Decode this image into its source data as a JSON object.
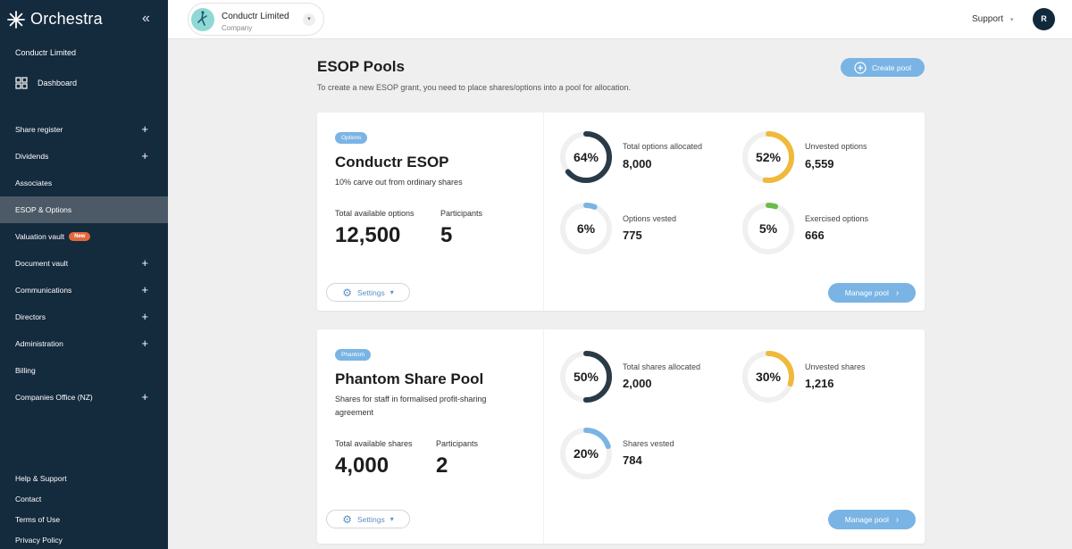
{
  "sidebar": {
    "brand": "Orchestra",
    "company": "Conductr Limited",
    "dashboard": "Dashboard",
    "items": [
      {
        "label": "Share register",
        "plus": "+"
      },
      {
        "label": "Dividends",
        "plus": "+"
      },
      {
        "label": "Associates",
        "plus": ""
      },
      {
        "label": "ESOP & Options",
        "plus": "",
        "active": true
      },
      {
        "label": "Valuation vault",
        "plus": "",
        "badge": "New"
      },
      {
        "label": "Document vault",
        "plus": "+"
      },
      {
        "label": "Communications",
        "plus": "+"
      },
      {
        "label": "Directors",
        "plus": "+"
      },
      {
        "label": "Administration",
        "plus": "+"
      },
      {
        "label": "Billing",
        "plus": ""
      },
      {
        "label": "Companies Office (NZ)",
        "plus": "+"
      }
    ],
    "footer": [
      "Help & Support",
      "Contact",
      "Terms of Use",
      "Privacy Policy"
    ]
  },
  "topbar": {
    "company_name": "Conductr Limited",
    "company_sub": "Company",
    "support": "Support",
    "avatar": "R"
  },
  "main": {
    "title": "ESOP Pools",
    "subtitle": "To create a new ESOP grant, you need to place shares/options into a pool for allocation.",
    "create_button": "Create pool"
  },
  "pools": [
    {
      "tag": "Options",
      "name": "Conductr ESOP",
      "description": "10% carve out from ordinary shares",
      "available_label": "Total available options",
      "available_value": "12,500",
      "participants_label": "Participants",
      "participants_value": "5",
      "metrics": [
        {
          "pct": "64%",
          "fraction": 0.64,
          "color": "#2b3a47",
          "label": "Total options allocated",
          "value": "8,000"
        },
        {
          "pct": "52%",
          "fraction": 0.52,
          "color": "#f0b93a",
          "label": "Unvested options",
          "value": "6,559"
        },
        {
          "pct": "6%",
          "fraction": 0.06,
          "color": "#7ab4e4",
          "label": "Options vested",
          "value": "775"
        },
        {
          "pct": "5%",
          "fraction": 0.05,
          "color": "#6cbb4a",
          "label": "Exercised options",
          "value": "666"
        }
      ],
      "settings": "Settings",
      "manage": "Manage pool"
    },
    {
      "tag": "Phantom",
      "name": "Phantom Share Pool",
      "description": "Shares for staff in formalised profit-sharing agreement",
      "available_label": "Total available shares",
      "available_value": "4,000",
      "participants_label": "Participants",
      "participants_value": "2",
      "metrics": [
        {
          "pct": "50%",
          "fraction": 0.5,
          "color": "#2b3a47",
          "label": "Total shares allocated",
          "value": "2,000"
        },
        {
          "pct": "30%",
          "fraction": 0.3,
          "color": "#f0b93a",
          "label": "Unvested shares",
          "value": "1,216"
        },
        {
          "pct": "20%",
          "fraction": 0.2,
          "color": "#7ab4e4",
          "label": "Shares vested",
          "value": "784"
        }
      ],
      "settings": "Settings",
      "manage": "Manage pool"
    }
  ]
}
